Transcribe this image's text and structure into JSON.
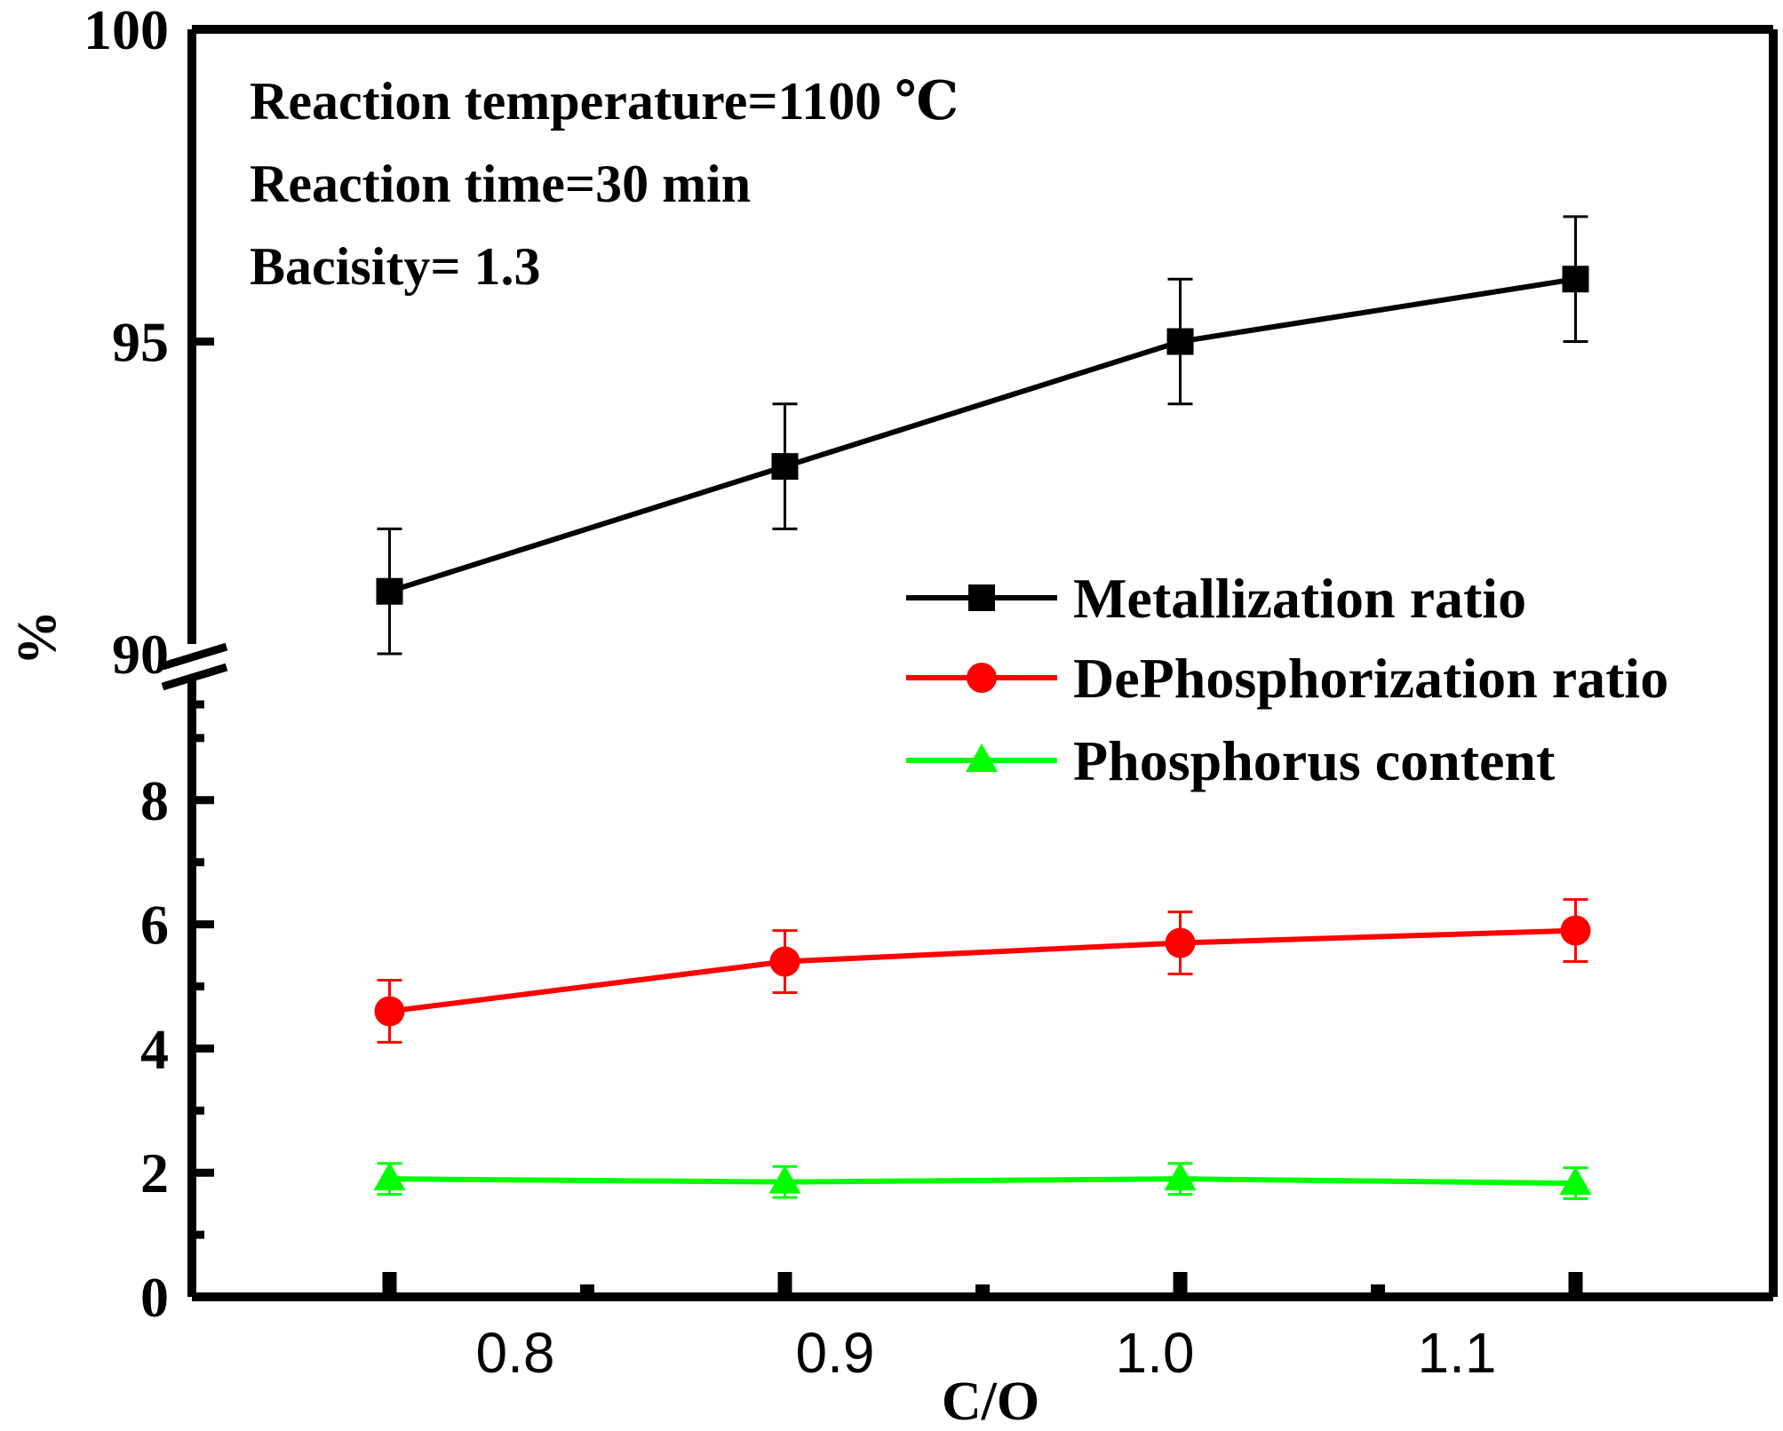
{
  "chart_data": {
    "type": "line",
    "title": "",
    "xlabel": "C/O",
    "ylabel": "%",
    "x": [
      0.77,
      0.89,
      1.01,
      1.13
    ],
    "xlim": [
      0.71,
      1.19
    ],
    "x_tick_labels": [
      {
        "value": 0.8,
        "text": "0.8"
      },
      {
        "value": 0.9,
        "text": "0.9"
      },
      {
        "value": 1.0,
        "text": "1.0"
      },
      {
        "value": 1.1,
        "text": "1.1"
      }
    ],
    "y_axis_break": {
      "lower_range": [
        0,
        10.3
      ],
      "upper_range": [
        90,
        100
      ]
    },
    "y_tick_labels": [
      {
        "value": 0,
        "text": "0"
      },
      {
        "value": 2,
        "text": "2"
      },
      {
        "value": 4,
        "text": "4"
      },
      {
        "value": 6,
        "text": "6"
      },
      {
        "value": 8,
        "text": "8"
      },
      {
        "value": 90,
        "text": "90"
      },
      {
        "value": 95,
        "text": "95"
      },
      {
        "value": 100,
        "text": "100"
      }
    ],
    "series": [
      {
        "name": "Metallization ratio",
        "color": "#000000",
        "marker": "square",
        "values": [
          91.0,
          93.0,
          95.0,
          96.0
        ],
        "errors": [
          1.0,
          1.0,
          1.0,
          1.0
        ]
      },
      {
        "name": "DePhosphorization ratio",
        "color": "#ff0000",
        "marker": "circle",
        "values": [
          4.6,
          5.4,
          5.7,
          5.9
        ],
        "errors": [
          0.5,
          0.5,
          0.5,
          0.5
        ]
      },
      {
        "name": "Phosphorus content",
        "color": "#00ff00",
        "marker": "triangle",
        "values": [
          1.9,
          1.85,
          1.9,
          1.83
        ],
        "errors": [
          0.25,
          0.25,
          0.25,
          0.25
        ]
      }
    ],
    "annotations": [
      "Reaction temperature=1100 ℃",
      "Reaction time=30 min",
      "Bacisity= 1.3"
    ],
    "legend_position": "right-middle",
    "grid": false
  }
}
